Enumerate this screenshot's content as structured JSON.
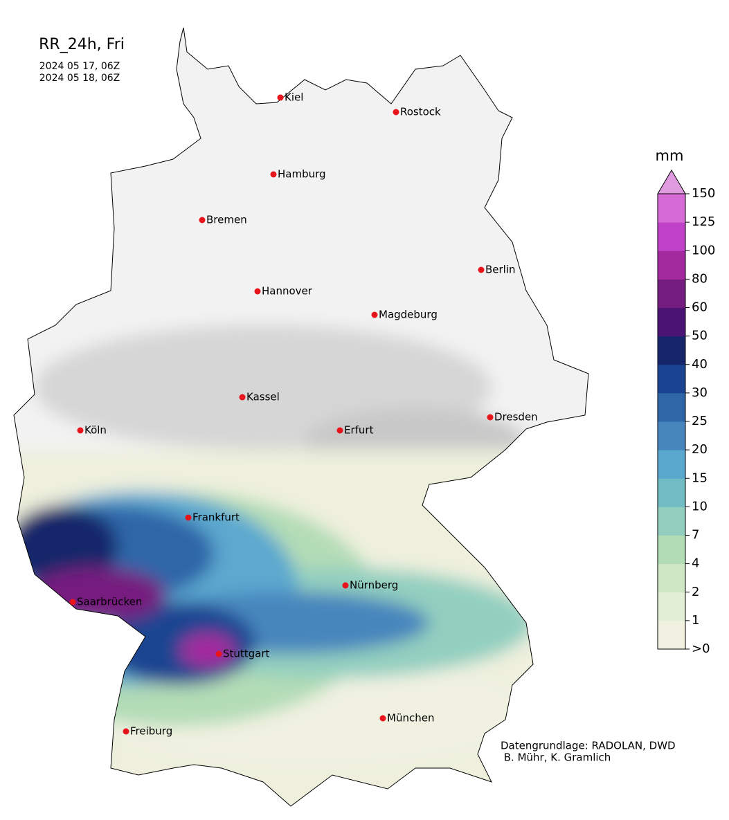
{
  "title": "RR_24h, Fri",
  "period": [
    "2024 05 17, 06Z",
    "2024 05 18, 06Z"
  ],
  "cities": [
    "Kiel",
    "Rostock",
    "Hamburg",
    "Bremen",
    "Berlin",
    "Hannover",
    "Magdeburg",
    "Kassel",
    "Dresden",
    "Köln",
    "Erfurt",
    "Frankfurt",
    "Nürnberg",
    "Saarbrücken",
    "Stuttgart",
    "München",
    "Freiburg"
  ],
  "legend": {
    "unit": "mm",
    "ticks": [
      {
        "value": 0,
        "label": ">0"
      },
      1,
      2,
      4,
      7,
      10,
      15,
      20,
      25,
      30,
      40,
      50,
      60,
      80,
      100,
      125,
      150
    ],
    "colors": [
      "#f0f1e1",
      "#e2eed6",
      "#cfe7c4",
      "#b2dcb6",
      "#93cfbf",
      "#72bcc3",
      "#5ba8cf",
      "#4686bd",
      "#2f66a8",
      "#1a4491",
      "#17266b",
      "#4a1474",
      "#761e7f",
      "#a22a9e",
      "#c042c8",
      "#d66bd8",
      "#e09ae0"
    ]
  },
  "credits": [
    "Datengrundlage: RADOLAN, DWD",
    " B. Mühr, K. Gramlich"
  ]
}
